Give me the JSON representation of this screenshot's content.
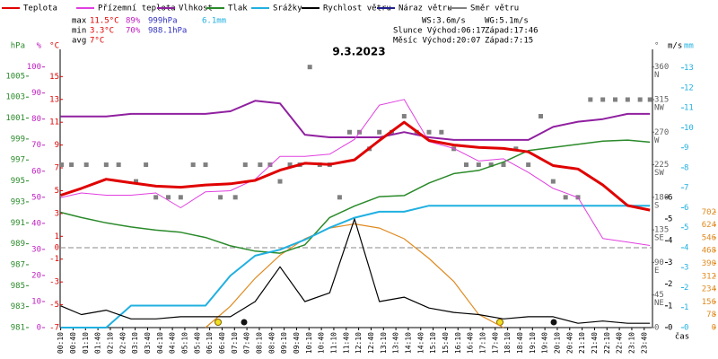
{
  "chart_data": {
    "type": "line",
    "title": "9.3.2023",
    "x_label": "čas",
    "xlim": [
      0,
      24
    ],
    "xticks": [
      {
        "value": 0.1667,
        "label": "00:10"
      },
      {
        "value": 0.6667,
        "label": "00:40"
      },
      {
        "value": 1.1667,
        "label": "01:10"
      },
      {
        "value": 1.6667,
        "label": "01:40"
      },
      {
        "value": 2.1667,
        "label": "02:10"
      },
      {
        "value": 2.6667,
        "label": "02:40"
      },
      {
        "value": 3.1667,
        "label": "03:10"
      },
      {
        "value": 3.6667,
        "label": "03:40"
      },
      {
        "value": 4.1667,
        "label": "04:10"
      },
      {
        "value": 4.6667,
        "label": "04:40"
      },
      {
        "value": 5.1667,
        "label": "05:10"
      },
      {
        "value": 5.6667,
        "label": "05:40"
      },
      {
        "value": 6.1667,
        "label": "06:10"
      },
      {
        "value": 6.6667,
        "label": "06:40"
      },
      {
        "value": 7.1667,
        "label": "07:10"
      },
      {
        "value": 7.6667,
        "label": "07:40"
      },
      {
        "value": 8.1667,
        "label": "08:10"
      },
      {
        "value": 8.6667,
        "label": "08:40"
      },
      {
        "value": 9.1667,
        "label": "09:10"
      },
      {
        "value": 9.6667,
        "label": "09:40"
      },
      {
        "value": 10.1667,
        "label": "10:10"
      },
      {
        "value": 10.6667,
        "label": "10:40"
      },
      {
        "value": 11.1667,
        "label": "11:10"
      },
      {
        "value": 11.6667,
        "label": "11:40"
      },
      {
        "value": 12.1667,
        "label": "12:10"
      },
      {
        "value": 12.6667,
        "label": "12:40"
      },
      {
        "value": 13.1667,
        "label": "13:10"
      },
      {
        "value": 13.6667,
        "label": "13:40"
      },
      {
        "value": 14.1667,
        "label": "14:10"
      },
      {
        "value": 14.6667,
        "label": "14:40"
      },
      {
        "value": 15.1667,
        "label": "15:10"
      },
      {
        "value": 15.6667,
        "label": "15:40"
      },
      {
        "value": 16.1667,
        "label": "16:10"
      },
      {
        "value": 16.6667,
        "label": "16:40"
      },
      {
        "value": 17.1667,
        "label": "17:10"
      },
      {
        "value": 17.6667,
        "label": "17:40"
      },
      {
        "value": 18.1667,
        "label": "18:10"
      },
      {
        "value": 18.6667,
        "label": "18:40"
      },
      {
        "value": 19.1667,
        "label": "19:10"
      },
      {
        "value": 19.6667,
        "label": "19:40"
      },
      {
        "value": 20.1667,
        "label": "20:10"
      },
      {
        "value": 20.6667,
        "label": "20:40"
      },
      {
        "value": 21.1667,
        "label": "21:10"
      },
      {
        "value": 21.6667,
        "label": "21:40"
      },
      {
        "value": 22.1667,
        "label": "22:10"
      },
      {
        "value": 22.6667,
        "label": "22:40"
      },
      {
        "value": 23.1667,
        "label": "23:10"
      },
      {
        "value": 23.6667,
        "label": "23:40"
      }
    ],
    "axes": {
      "hpa": {
        "label": "hPa",
        "color": "#2a8a2a",
        "side": "left",
        "lim": [
          981,
          1006.7
        ],
        "ticks": [
          981,
          983,
          985,
          987,
          989,
          991,
          993,
          995,
          997,
          999,
          1001,
          1003,
          1005
        ]
      },
      "pct": {
        "label": "%",
        "color": "#c020c0",
        "side": "left",
        "lim": [
          0,
          103.3
        ],
        "ticks": [
          0,
          10,
          20,
          30,
          40,
          50,
          60,
          70,
          80,
          90,
          100
        ]
      },
      "temp": {
        "label": "°C",
        "color": "#e00000",
        "side": "left",
        "lim": [
          -7,
          16.6
        ],
        "ticks": [
          -7,
          -5,
          -3,
          -1,
          0,
          1,
          3,
          5,
          7,
          9,
          11,
          13,
          15
        ]
      },
      "deg": {
        "label": "°",
        "color": "#606060",
        "side": "right",
        "lim": [
          0,
          372
        ],
        "ticks": [
          0,
          45,
          90,
          135,
          180,
          225,
          270,
          315,
          360
        ],
        "compass": [
          null,
          "NE",
          "E",
          "SE",
          "S",
          "SW",
          "W",
          "NW",
          "N"
        ]
      },
      "ms": {
        "label": "m/s",
        "color": "#000000",
        "side": "right",
        "lim": [
          0,
          12.4
        ],
        "ticks": [
          0,
          1,
          2,
          3,
          4,
          5,
          6
        ]
      },
      "mm": {
        "label": "mm",
        "color": "#20b0e0",
        "side": "right",
        "lim": [
          0,
          13.48
        ],
        "ticks": [
          0,
          1,
          2,
          3,
          4,
          5,
          6,
          7,
          8,
          9,
          10,
          11,
          12,
          13
        ]
      },
      "wm2": {
        "color": "#e08a20",
        "side": "right",
        "lim": [
          0,
          1636
        ],
        "ticks": [
          0,
          78,
          156,
          234,
          312,
          390,
          468,
          546,
          624,
          702
        ]
      }
    },
    "x": [
      0.17,
      1,
      2,
      3,
      4,
      5,
      6,
      7,
      8,
      9,
      10,
      11,
      12,
      13,
      14,
      15,
      16,
      17,
      18,
      19,
      20,
      21,
      22,
      23,
      23.9
    ],
    "series": [
      {
        "name": "Teplota",
        "color": "#e00000",
        "axis": "temp",
        "width": 3,
        "values": [
          4.6,
          5.2,
          6.0,
          5.7,
          5.4,
          5.3,
          5.5,
          5.6,
          5.9,
          6.8,
          7.4,
          7.3,
          7.7,
          9.4,
          11.0,
          9.4,
          9.0,
          8.8,
          8.7,
          8.4,
          7.2,
          6.9,
          5.5,
          3.7,
          3.3
        ]
      },
      {
        "name": "Přízemní teplota",
        "color": "#e040e0",
        "axis": "temp",
        "width": 1,
        "values": [
          4.4,
          4.8,
          4.6,
          4.6,
          4.8,
          3.5,
          4.9,
          5.0,
          6.0,
          8.0,
          8.0,
          8.2,
          9.5,
          12.5,
          13.0,
          9.3,
          8.7,
          7.6,
          7.8,
          6.6,
          5.2,
          4.4,
          0.8,
          0.5,
          0.2
        ]
      },
      {
        "name": "Vlhkost",
        "color": "#9020a0",
        "axis": "pct",
        "width": 2,
        "values": [
          81,
          81,
          81,
          82,
          82,
          82,
          82,
          83,
          87,
          86,
          74,
          73,
          73,
          73,
          75,
          73,
          72,
          72,
          72,
          72,
          77,
          79,
          80,
          82,
          82
        ]
      },
      {
        "name": "Tlak",
        "color": "#2a8a2a",
        "axis": "hpa",
        "width": 1.5,
        "values": [
          992.0,
          991.5,
          991.0,
          990.6,
          990.3,
          990.1,
          989.6,
          988.8,
          988.3,
          988.1,
          988.9,
          991.5,
          992.6,
          993.5,
          993.6,
          994.8,
          995.7,
          996.0,
          996.8,
          997.9,
          998.2,
          998.5,
          998.8,
          998.9,
          998.7
        ]
      },
      {
        "name": "Srážky",
        "color": "#20b0e0",
        "axis": "mm",
        "width": 2,
        "values": [
          0,
          0,
          0,
          1.1,
          1.1,
          1.1,
          1.1,
          2.6,
          3.6,
          3.9,
          4.4,
          5.0,
          5.5,
          5.8,
          5.8,
          6.1,
          6.1,
          6.1,
          6.1,
          6.1,
          6.1,
          6.1,
          6.1,
          6.1,
          6.1
        ]
      },
      {
        "name": "Rychlost větru",
        "color": "#000000",
        "axis": "ms",
        "width": 1.2,
        "values": [
          1.0,
          0.6,
          0.8,
          0.4,
          0.4,
          0.5,
          0.5,
          0.5,
          1.2,
          2.8,
          1.2,
          1.6,
          5.0,
          1.2,
          1.4,
          0.9,
          0.7,
          0.6,
          0.4,
          0.5,
          0.5,
          0.2,
          0.3,
          0.2,
          0.2
        ]
      },
      {
        "name": "Náraz větru",
        "color": "#202090",
        "axis": "ms",
        "width": 1.2,
        "values": [
          null,
          null,
          null,
          null,
          null,
          null,
          null,
          null,
          null,
          null,
          null,
          null,
          null,
          null,
          null,
          null,
          null,
          null,
          null,
          null,
          null,
          null,
          null,
          null,
          null
        ]
      }
    ],
    "radiation": {
      "color": "#e08a20",
      "axis": "wm2",
      "values": [
        null,
        null,
        null,
        null,
        null,
        null,
        0,
        130,
        300,
        440,
        540,
        605,
        630,
        605,
        540,
        420,
        280,
        80,
        0,
        null,
        null,
        null,
        null,
        null,
        null
      ]
    },
    "direction": {
      "name": "Směr větru",
      "color": "#808080",
      "axis": "deg",
      "x": [
        0.2,
        0.6,
        1.2,
        2.0,
        2.5,
        3.2,
        3.6,
        4.0,
        4.5,
        5.0,
        5.5,
        6.0,
        6.6,
        7.2,
        7.6,
        8.2,
        8.6,
        9.0,
        9.4,
        9.8,
        10.2,
        10.6,
        11.0,
        11.4,
        11.8,
        12.2,
        12.6,
        13.0,
        13.5,
        14.0,
        14.5,
        15.0,
        15.5,
        16.0,
        16.5,
        17.0,
        17.5,
        18.0,
        18.5,
        19.0,
        19.5,
        20.0,
        20.5,
        21.0,
        21.5,
        22.0,
        22.5,
        23.0,
        23.5,
        23.9
      ],
      "values": [
        225,
        225,
        225,
        225,
        225,
        202,
        225,
        180,
        180,
        180,
        225,
        225,
        180,
        180,
        225,
        225,
        225,
        202,
        225,
        225,
        360,
        225,
        225,
        180,
        270,
        270,
        247,
        270,
        270,
        292,
        270,
        270,
        270,
        247,
        225,
        225,
        225,
        225,
        247,
        225,
        292,
        202,
        180,
        180,
        315,
        315,
        315,
        315,
        315,
        315
      ]
    },
    "stats": [
      {
        "label": "max",
        "values": [
          "11.5°C",
          "89%",
          "999hPa",
          "6.1mm"
        ]
      },
      {
        "label": "min",
        "values": [
          "3.3°C",
          "70%",
          "988.1hPa"
        ]
      },
      {
        "label": "avg",
        "values": [
          "7°C"
        ]
      }
    ],
    "info": [
      "WS:3.6m/s",
      "WG:5.1m/s",
      "Slunce Východ:06:17",
      "Západ:17:46",
      "Měsíc Východ:20:07",
      "Západ:7:15"
    ]
  }
}
